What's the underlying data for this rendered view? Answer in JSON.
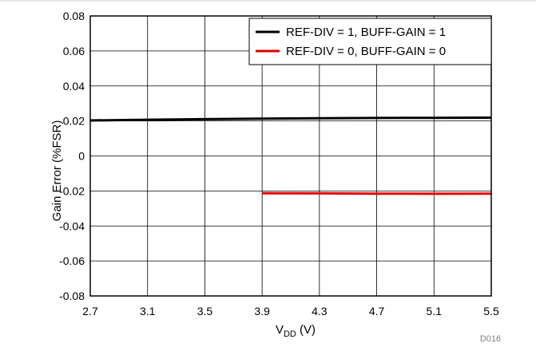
{
  "chart_data": {
    "type": "line",
    "xlabel_main": "V",
    "xlabel_sub": "DD",
    "xlabel_unit": " (V)",
    "ylabel": "Gain Error (%FSR)",
    "xlim": [
      2.7,
      5.5
    ],
    "ylim": [
      -0.08,
      0.08
    ],
    "x_ticks": [
      "2.7",
      "3.1",
      "3.5",
      "3.9",
      "4.3",
      "4.7",
      "5.1",
      "5.5"
    ],
    "y_ticks": [
      "0.08",
      "0.06",
      "0.04",
      "0.02",
      "0",
      "-0.02",
      "-0.04",
      "-0.06",
      "-0.08"
    ],
    "grid": true,
    "legend_position": "top-right",
    "series": [
      {
        "name": "REF-DIV = 1, BUFF-GAIN = 1",
        "color": "#000000",
        "x": [
          2.7,
          3.1,
          3.5,
          3.9,
          4.3,
          4.7,
          5.1,
          5.5
        ],
        "y": [
          0.0203,
          0.0207,
          0.021,
          0.0213,
          0.0215,
          0.0217,
          0.0218,
          0.0219
        ]
      },
      {
        "name": "REF-DIV = 0, BUFF-GAIN = 0",
        "color": "#e00000",
        "x": [
          3.9,
          4.3,
          4.7,
          5.1,
          5.5
        ],
        "y": [
          -0.0213,
          -0.0214,
          -0.0215,
          -0.0216,
          -0.0215
        ]
      }
    ],
    "figure_id": "D016"
  }
}
